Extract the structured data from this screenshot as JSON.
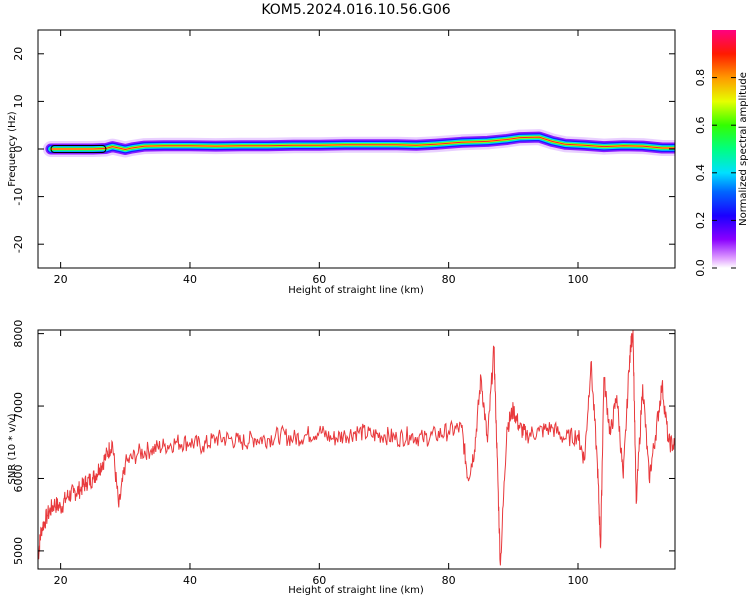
{
  "title": "KOM5.2024.016.10.56.G06",
  "chart_data": [
    {
      "type": "heatmap",
      "xlabel": "Height of straight line (km)",
      "ylabel": "Frequency (Hz)",
      "xlim": [
        16.5,
        115
      ],
      "ylim": [
        -25,
        25
      ],
      "xticks": [
        "20",
        "40",
        "60",
        "80",
        "100"
      ],
      "yticks": [
        "20",
        "10",
        "0",
        "-10",
        "-20"
      ],
      "ridge": {
        "x": [
          18.5,
          20,
          25,
          27,
          28,
          29,
          30,
          31,
          33,
          36,
          40,
          44,
          48,
          52,
          56,
          60,
          64,
          68,
          72,
          75,
          78,
          82,
          86,
          89,
          91,
          94,
          96,
          98,
          101,
          104,
          107,
          110,
          113,
          115
        ],
        "frequency_hz": [
          0.0,
          0.0,
          0.0,
          0.1,
          0.5,
          0.2,
          -0.1,
          0.2,
          0.6,
          0.7,
          0.7,
          0.6,
          0.7,
          0.7,
          0.8,
          0.8,
          0.9,
          0.9,
          0.9,
          0.8,
          1.0,
          1.4,
          1.6,
          2.0,
          2.4,
          2.5,
          1.6,
          1.0,
          0.8,
          0.5,
          0.7,
          0.6,
          0.2,
          0.2
        ]
      },
      "colorbar": {
        "label": "Normalized spectral amplitude",
        "range": [
          0.0,
          1.0
        ],
        "ticks": [
          "0.0",
          "0.2",
          "0.4",
          "0.6",
          "0.8"
        ],
        "colormap": "gist_rainbow (purple to red)"
      }
    },
    {
      "type": "line",
      "xlabel": "Height of straight line (km)",
      "ylabel": "SNR (10 * v/v)",
      "xlim": [
        16.5,
        115
      ],
      "ylim": [
        4750,
        8050
      ],
      "xticks": [
        "20",
        "40",
        "60",
        "80",
        "100"
      ],
      "yticks": [
        "8000",
        "7000",
        "6000",
        "5000"
      ],
      "color": "#e8393c",
      "x": [
        16.5,
        17,
        18,
        19,
        20,
        21,
        22,
        23,
        24,
        25,
        26,
        27,
        28,
        29,
        30,
        32,
        34,
        36,
        38,
        40,
        42,
        44,
        46,
        48,
        50,
        52,
        54,
        56,
        58,
        60,
        62,
        64,
        66,
        68,
        70,
        72,
        74,
        76,
        78,
        80,
        82,
        83,
        84,
        85,
        86,
        87,
        87.5,
        88,
        89,
        90,
        91,
        92,
        94,
        96,
        98,
        100,
        101,
        102,
        103,
        103.5,
        104,
        105,
        106,
        107,
        108,
        108.5,
        109,
        110,
        111,
        112,
        113,
        114,
        115
      ],
      "y": [
        4900,
        5300,
        5500,
        5650,
        5600,
        5750,
        5800,
        5850,
        5950,
        6000,
        6150,
        6300,
        6500,
        5600,
        6200,
        6350,
        6400,
        6450,
        6500,
        6500,
        6450,
        6550,
        6550,
        6500,
        6550,
        6550,
        6600,
        6550,
        6600,
        6650,
        6550,
        6600,
        6650,
        6600,
        6600,
        6550,
        6600,
        6550,
        6600,
        6650,
        6700,
        6000,
        6400,
        7400,
        6500,
        7800,
        6300,
        4800,
        6700,
        6950,
        6700,
        6600,
        6650,
        6700,
        6550,
        6600,
        6250,
        7600,
        6200,
        5050,
        7400,
        6600,
        7150,
        6000,
        7700,
        8050,
        5650,
        7300,
        6000,
        6600,
        7300,
        6500,
        6450
      ]
    }
  ]
}
